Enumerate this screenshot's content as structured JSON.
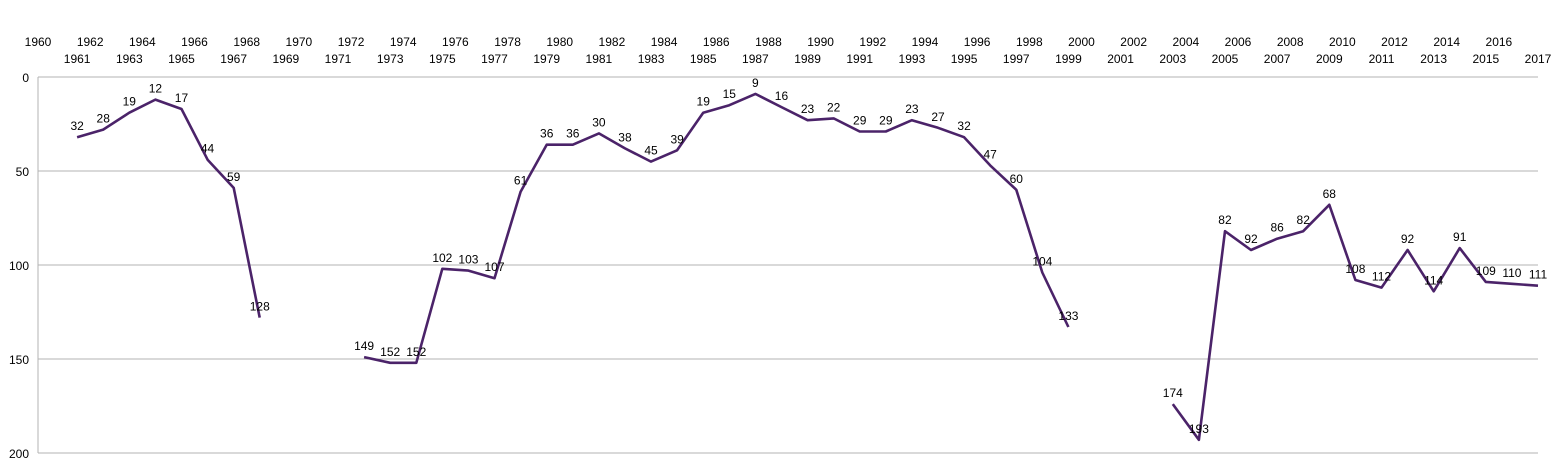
{
  "chart_data": {
    "type": "line",
    "title": "",
    "xlabel": "",
    "ylabel": "",
    "y_reversed": true,
    "ylim": [
      0,
      200
    ],
    "yticks": [
      0,
      50,
      100,
      150,
      200
    ],
    "xlim": [
      1960,
      2017
    ],
    "x_axis_position": "top",
    "grid": "horizontal",
    "legend": "none",
    "line_color": "#4b2369",
    "series": [
      {
        "points": [
          [
            1961,
            32
          ],
          [
            1962,
            28
          ],
          [
            1963,
            19
          ],
          [
            1964,
            12
          ],
          [
            1965,
            17
          ],
          [
            1966,
            44
          ],
          [
            1967,
            59
          ],
          [
            1968,
            128
          ],
          [
            1969,
            null
          ],
          [
            1970,
            null
          ],
          [
            1971,
            null
          ],
          [
            1972,
            149
          ],
          [
            1973,
            152
          ],
          [
            1974,
            152
          ],
          [
            1975,
            102
          ],
          [
            1976,
            103
          ],
          [
            1977,
            107
          ],
          [
            1978,
            61
          ],
          [
            1979,
            36
          ],
          [
            1980,
            36
          ],
          [
            1981,
            30
          ],
          [
            1982,
            38
          ],
          [
            1983,
            45
          ],
          [
            1984,
            39
          ],
          [
            1985,
            19
          ],
          [
            1986,
            15
          ],
          [
            1987,
            9
          ],
          [
            1988,
            16
          ],
          [
            1989,
            23
          ],
          [
            1990,
            22
          ],
          [
            1991,
            29
          ],
          [
            1992,
            29
          ],
          [
            1993,
            23
          ],
          [
            1994,
            27
          ],
          [
            1995,
            32
          ],
          [
            1996,
            47
          ],
          [
            1997,
            60
          ],
          [
            1998,
            104
          ],
          [
            1999,
            133
          ],
          [
            2000,
            null
          ],
          [
            2001,
            null
          ],
          [
            2002,
            null
          ],
          [
            2003,
            174
          ],
          [
            2004,
            193
          ],
          [
            2005,
            82
          ],
          [
            2006,
            92
          ],
          [
            2007,
            86
          ],
          [
            2008,
            82
          ],
          [
            2009,
            68
          ],
          [
            2010,
            108
          ],
          [
            2011,
            112
          ],
          [
            2012,
            92
          ],
          [
            2013,
            114
          ],
          [
            2014,
            91
          ],
          [
            2015,
            109
          ],
          [
            2016,
            110
          ],
          [
            2017,
            111
          ]
        ]
      }
    ]
  }
}
